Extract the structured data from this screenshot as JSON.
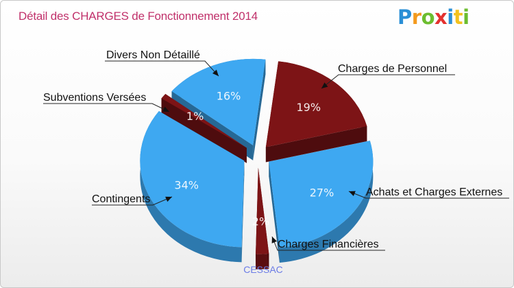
{
  "chart_data": {
    "type": "pie",
    "title": "Détail des CHARGES de Fonctionnement 2014",
    "subtitle": "CESSAC",
    "slices": [
      {
        "label": "Charges de Personnel",
        "value": 19,
        "display": "19%",
        "color": "#7d1416"
      },
      {
        "label": "Achats et Charges Externes",
        "value": 27,
        "display": "27%",
        "color": "#3ea8f1"
      },
      {
        "label": "Charges Financières",
        "value": 2,
        "display": "2%",
        "color": "#7d1416"
      },
      {
        "label": "Contingents",
        "value": 34,
        "display": "34%",
        "color": "#3ea8f1"
      },
      {
        "label": "Subventions Versées",
        "value": 1,
        "display": "1%",
        "color": "#7d1416"
      },
      {
        "label": "Divers Non Détaillé",
        "value": 16,
        "display": "16%",
        "color": "#3ea8f1"
      }
    ],
    "legend": "none"
  },
  "logo": {
    "letters": [
      {
        "char": "P",
        "color": "#2a8fd6"
      },
      {
        "char": "r",
        "color": "#f39a1e"
      },
      {
        "char": "o",
        "color": "#6cbd2f"
      },
      {
        "char": "x",
        "color": "#e4312f"
      },
      {
        "char": "i",
        "color": "#2a8fd6"
      },
      {
        "char": "t",
        "color": "#f3c21e"
      },
      {
        "char": "i",
        "color": "#6cbd2f"
      }
    ]
  },
  "colors": {
    "title": "#c0306a",
    "city": "#6a7be6"
  }
}
